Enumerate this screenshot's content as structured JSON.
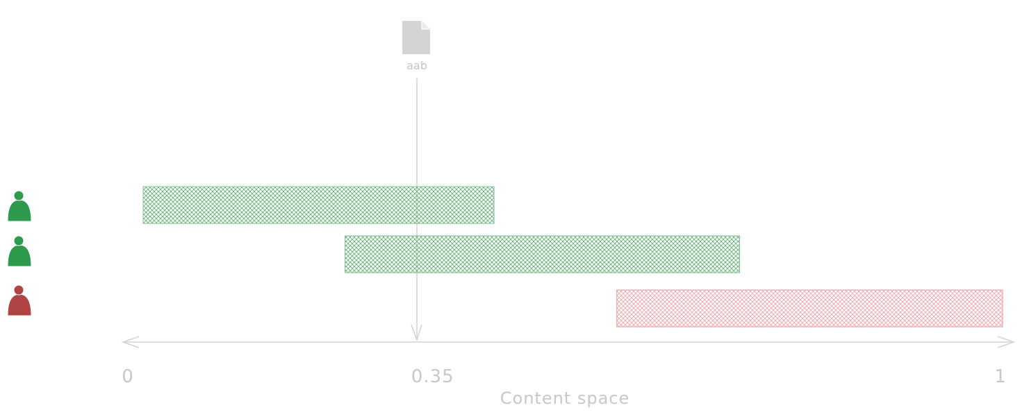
{
  "document": {
    "label": "aab",
    "icon": "document-icon",
    "position_value": 0.35
  },
  "axis": {
    "title": "Content space",
    "min": 0,
    "max": 1,
    "ticks": [
      {
        "value": 0,
        "label": "0"
      },
      {
        "value": 0.35,
        "label": "0.35"
      },
      {
        "value": 1,
        "label": "1"
      }
    ]
  },
  "ranges": [
    {
      "user_icon": "user-icon",
      "color": "#2e9a4b",
      "status": "green",
      "start": 0.02,
      "end": 0.42
    },
    {
      "user_icon": "user-icon",
      "color": "#2e9a4b",
      "status": "green",
      "start": 0.25,
      "end": 0.7
    },
    {
      "user_icon": "user-icon",
      "color": "#b04444",
      "status": "red",
      "start": 0.56,
      "end": 1.0
    }
  ],
  "colors": {
    "green": "#2e9a4b",
    "red": "#b04444",
    "axis": "#d4d4d4",
    "hatch_green": "#5fae74",
    "hatch_red": "#f0a3a8"
  }
}
